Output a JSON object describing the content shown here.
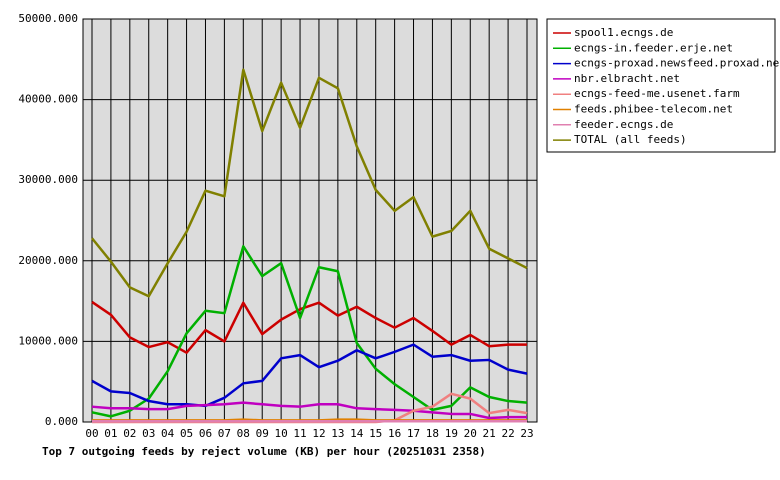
{
  "chart_data": {
    "type": "line",
    "title": "Top 7 outgoing feeds by reject volume (KB) per hour (20251031 2358)",
    "categories": [
      "00",
      "01",
      "02",
      "03",
      "04",
      "05",
      "06",
      "07",
      "08",
      "09",
      "10",
      "11",
      "12",
      "13",
      "14",
      "15",
      "16",
      "17",
      "18",
      "19",
      "20",
      "21",
      "22",
      "23"
    ],
    "series": [
      {
        "name": "spool1.ecngs.de",
        "color": "#cc0000",
        "values": [
          14900,
          13300,
          10500,
          9300,
          9900,
          8600,
          11400,
          10000,
          14800,
          10900,
          12700,
          14000,
          14800,
          13200,
          14300,
          12900,
          11700,
          12900,
          11300,
          9600,
          10800,
          9400,
          9600,
          9600
        ]
      },
      {
        "name": "ecngs-in.feeder.erje.net",
        "color": "#00b000",
        "values": [
          1200,
          700,
          1400,
          2900,
          6300,
          11000,
          13800,
          13500,
          21800,
          18100,
          19700,
          12900,
          19200,
          18700,
          9800,
          6600,
          4700,
          3100,
          1500,
          2000,
          4300,
          3100,
          2600,
          2400
        ]
      },
      {
        "name": "ecngs-proxad.newsfeed.proxad.net",
        "color": "#0000cc",
        "values": [
          5100,
          3800,
          3600,
          2600,
          2200,
          2200,
          2000,
          3000,
          4800,
          5100,
          7900,
          8300,
          6800,
          7600,
          8900,
          7900,
          8700,
          9600,
          8100,
          8300,
          7600,
          7700,
          6500,
          6000
        ]
      },
      {
        "name": "nbr.elbracht.net",
        "color": "#c000c0",
        "values": [
          1900,
          1700,
          1700,
          1600,
          1600,
          2000,
          2100,
          2200,
          2400,
          2200,
          2000,
          1900,
          2200,
          2200,
          1700,
          1600,
          1500,
          1400,
          1200,
          1000,
          1000,
          500,
          600,
          600
        ]
      },
      {
        "name": "ecngs-feed-me.usenet.farm",
        "color": "#f08080",
        "values": [
          0,
          0,
          0,
          0,
          0,
          0,
          0,
          0,
          0,
          0,
          0,
          0,
          0,
          0,
          0,
          0,
          200,
          1400,
          1900,
          3500,
          2900,
          1100,
          1500,
          1100
        ]
      },
      {
        "name": "feeds.phibee-telecom.net",
        "color": "#e08000",
        "values": [
          200,
          200,
          200,
          200,
          200,
          200,
          200,
          200,
          300,
          200,
          200,
          200,
          200,
          300,
          300,
          200,
          200,
          200,
          200,
          200,
          200,
          200,
          200,
          200
        ]
      },
      {
        "name": "feeder.ecngs.de",
        "color": "#e080b0",
        "values": [
          100,
          100,
          100,
          100,
          100,
          100,
          100,
          100,
          100,
          100,
          100,
          100,
          100,
          100,
          100,
          100,
          100,
          100,
          100,
          100,
          100,
          100,
          100,
          100
        ]
      },
      {
        "name": "TOTAL (all feeds)",
        "color": "#808000",
        "values": [
          22800,
          19900,
          16700,
          15600,
          19700,
          23600,
          28700,
          28000,
          43700,
          36100,
          42100,
          36500,
          42700,
          41400,
          34200,
          28800,
          26200,
          27900,
          23000,
          23700,
          26200,
          21500,
          20300,
          19100
        ]
      }
    ],
    "ylim": [
      0,
      50000
    ],
    "yticks": [
      {
        "value": 0,
        "label": "0.000"
      },
      {
        "value": 10000,
        "label": "10000.000"
      },
      {
        "value": 20000,
        "label": "20000.000"
      },
      {
        "value": 30000,
        "label": "30000.000"
      },
      {
        "value": 40000,
        "label": "40000.000"
      },
      {
        "value": 50000,
        "label": "50000.000"
      }
    ],
    "grid": true
  }
}
